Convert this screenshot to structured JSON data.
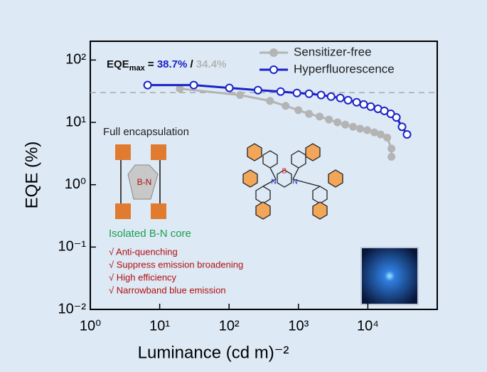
{
  "chart_data": {
    "type": "line",
    "x_label": "Luminance (cd m)⁻²",
    "y_label": "EQE (%)",
    "log_x": true,
    "log_y": true,
    "xlim": [
      1,
      100000
    ],
    "ylim": [
      0.01,
      200
    ],
    "xticks": [
      {
        "value": 1,
        "label": "10⁰"
      },
      {
        "value": 10,
        "label": "10¹"
      },
      {
        "value": 100,
        "label": "10²"
      },
      {
        "value": 1000,
        "label": "10³"
      },
      {
        "value": 10000,
        "label": "10⁴"
      }
    ],
    "yticks": [
      {
        "value": 0.01,
        "label": "10⁻²"
      },
      {
        "value": 0.1,
        "label": "10⁻¹"
      },
      {
        "value": 1,
        "label": "10⁰"
      },
      {
        "value": 10,
        "label": "10¹"
      },
      {
        "value": 100,
        "label": "10²"
      }
    ],
    "reference_y": 30,
    "legend": "upper right",
    "series": [
      {
        "name": "Sensitizer-free",
        "color": "#b4b4b4",
        "marker": "filled",
        "x": [
          19.5,
          144,
          389,
          653,
          998,
          1420,
          2020,
          2750,
          3650,
          4730,
          6120,
          7750,
          9810,
          12400,
          15300,
          19000,
          21900,
          21900
        ],
        "values": [
          34.7,
          27.4,
          22.1,
          18.4,
          15.7,
          13.7,
          12.4,
          11.1,
          10,
          9.2,
          8.5,
          7.9,
          7.5,
          6.9,
          6.4,
          5.7,
          3.8,
          2.8
        ]
      },
      {
        "name": "Hyperfluorescence",
        "color": "#1a22c8",
        "marker": "open",
        "x": [
          6.7,
          31,
          101,
          261,
          553,
          951,
          1420,
          2120,
          2950,
          4010,
          5190,
          6890,
          8720,
          11000,
          14000,
          17300,
          21400,
          25800,
          31100,
          36700
        ],
        "values": [
          39.6,
          39.6,
          35.7,
          32.9,
          31.2,
          29.6,
          28.8,
          27.4,
          25.9,
          24.6,
          22.7,
          21.0,
          19.4,
          17.9,
          16.5,
          15.3,
          13.7,
          12.0,
          8.5,
          6.4
        ]
      }
    ],
    "annotation": {
      "lead": "EQE",
      "sub": "max",
      "eq": " = ",
      "v1": "38.7%",
      "sep": " / ",
      "v2": "34.4%"
    },
    "inset": {
      "encapsulation": "Full encapsulation",
      "core_label": "B-N",
      "core_title": "Isolated B-N core",
      "features": [
        "√ Anti-quenching",
        "√ Suppress emission broadening",
        "√ High efficiency",
        "√ Narrowband blue emission"
      ],
      "atoms": [
        "B",
        "N",
        "N"
      ]
    }
  }
}
